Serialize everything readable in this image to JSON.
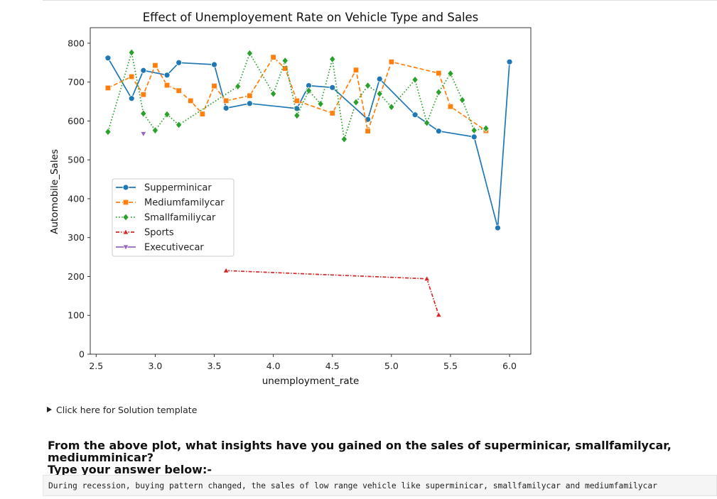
{
  "notebook": {
    "solution_toggle": "Click here for Solution template",
    "question_line1": "From the above plot, what insights have you gained on the sales of superminicar, smallfamilycar, mediumminicar?",
    "question_line2": "Type your answer below:-",
    "answer_text": "During recession, buying pattern changed, the sales of low range vehicle like superminicar, smallfamilycar and mediumfamilycar"
  },
  "chart_data": {
    "type": "line",
    "title": "Effect of Unemployement Rate on Vehicle Type and Sales",
    "xlabel": "unemployment_rate",
    "ylabel": "Automobile_Sales",
    "xlim": [
      2.45,
      6.18
    ],
    "ylim": [
      0,
      840
    ],
    "xticks": [
      "2.5",
      "3.0",
      "3.5",
      "4.0",
      "4.5",
      "5.0",
      "5.5",
      "6.0"
    ],
    "yticks": [
      "0",
      "100",
      "200",
      "300",
      "400",
      "500",
      "600",
      "700",
      "800"
    ],
    "grid": false,
    "legend_position": "center-left",
    "series": [
      {
        "name": "Supperminicar",
        "color": "#1f77b4",
        "marker": "circle",
        "dash": "solid",
        "points": [
          [
            2.6,
            762
          ],
          [
            2.8,
            658
          ],
          [
            2.9,
            730
          ],
          [
            3.1,
            718
          ],
          [
            3.2,
            750
          ],
          [
            3.5,
            745
          ],
          [
            3.6,
            633
          ],
          [
            3.8,
            645
          ],
          [
            4.2,
            632
          ],
          [
            4.3,
            691
          ],
          [
            4.5,
            686
          ],
          [
            4.8,
            604
          ],
          [
            4.9,
            708
          ],
          [
            5.2,
            616
          ],
          [
            5.4,
            574
          ],
          [
            5.7,
            559
          ],
          [
            5.9,
            325
          ],
          [
            6.0,
            752
          ]
        ]
      },
      {
        "name": "Mediumfamilycar",
        "color": "#ff7f0e",
        "marker": "square",
        "dash": "dashed",
        "points": [
          [
            2.6,
            685
          ],
          [
            2.8,
            714
          ],
          [
            2.9,
            668
          ],
          [
            3.0,
            743
          ],
          [
            3.1,
            692
          ],
          [
            3.2,
            678
          ],
          [
            3.3,
            652
          ],
          [
            3.4,
            618
          ],
          [
            3.5,
            690
          ],
          [
            3.6,
            652
          ],
          [
            3.8,
            665
          ],
          [
            4.0,
            764
          ],
          [
            4.1,
            735
          ],
          [
            4.2,
            652
          ],
          [
            4.5,
            620
          ],
          [
            4.7,
            731
          ],
          [
            4.8,
            574
          ],
          [
            5.0,
            752
          ],
          [
            5.4,
            723
          ],
          [
            5.5,
            637
          ],
          [
            5.8,
            575
          ]
        ]
      },
      {
        "name": "Smallfamiliycar",
        "color": "#2ca02c",
        "marker": "diamond",
        "dash": "dotted",
        "points": [
          [
            2.6,
            572
          ],
          [
            2.8,
            776
          ],
          [
            2.9,
            619
          ],
          [
            3.0,
            576
          ],
          [
            3.1,
            617
          ],
          [
            3.2,
            590
          ],
          [
            3.7,
            689
          ],
          [
            3.8,
            774
          ],
          [
            4.0,
            670
          ],
          [
            4.1,
            755
          ],
          [
            4.2,
            614
          ],
          [
            4.3,
            678
          ],
          [
            4.4,
            644
          ],
          [
            4.5,
            759
          ],
          [
            4.6,
            553
          ],
          [
            4.7,
            648
          ],
          [
            4.8,
            691
          ],
          [
            4.9,
            670
          ],
          [
            5.0,
            636
          ],
          [
            5.2,
            706
          ],
          [
            5.3,
            595
          ],
          [
            5.4,
            674
          ],
          [
            5.5,
            722
          ],
          [
            5.6,
            654
          ],
          [
            5.7,
            576
          ],
          [
            5.8,
            581
          ]
        ]
      },
      {
        "name": "Sports",
        "color": "#d62728",
        "marker": "triangle-up",
        "dash": "dashdot",
        "points": [
          [
            3.6,
            215
          ],
          [
            5.3,
            194
          ],
          [
            5.4,
            101
          ]
        ]
      },
      {
        "name": "Executivecar",
        "color": "#9467bd",
        "marker": "triangle-down",
        "dash": "solid",
        "points": [
          [
            2.9,
            567
          ]
        ]
      }
    ]
  }
}
